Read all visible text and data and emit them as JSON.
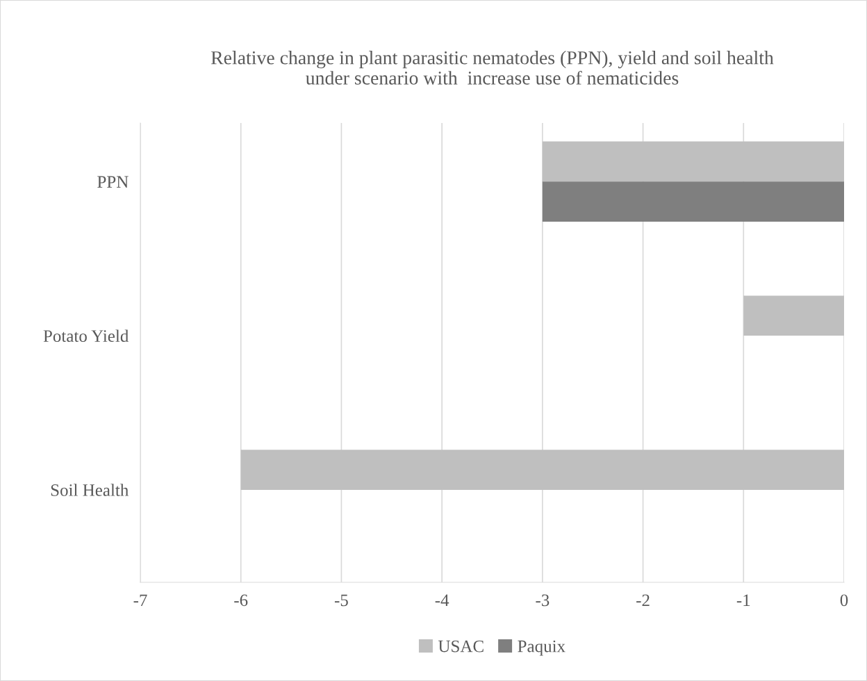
{
  "chart_data": {
    "type": "bar",
    "orientation": "horizontal",
    "title": "Relative change in plant parasitic nematodes (PPN), yield and soil health\nunder scenario with  increase use of nematicides",
    "categories": [
      "PPN",
      "Potato Yield",
      "Soil Health"
    ],
    "series": [
      {
        "name": "USAC",
        "color": "#bfbfbf",
        "values": [
          -3,
          -1,
          -6
        ]
      },
      {
        "name": "Paquix",
        "color": "#7f7f7f",
        "values": [
          -3,
          null,
          null
        ]
      }
    ],
    "xlim": [
      -7,
      0
    ],
    "xticks": [
      -7,
      -6,
      -5,
      -4,
      -3,
      -2,
      -1,
      0
    ],
    "grid": "x",
    "legend": "bottom"
  }
}
